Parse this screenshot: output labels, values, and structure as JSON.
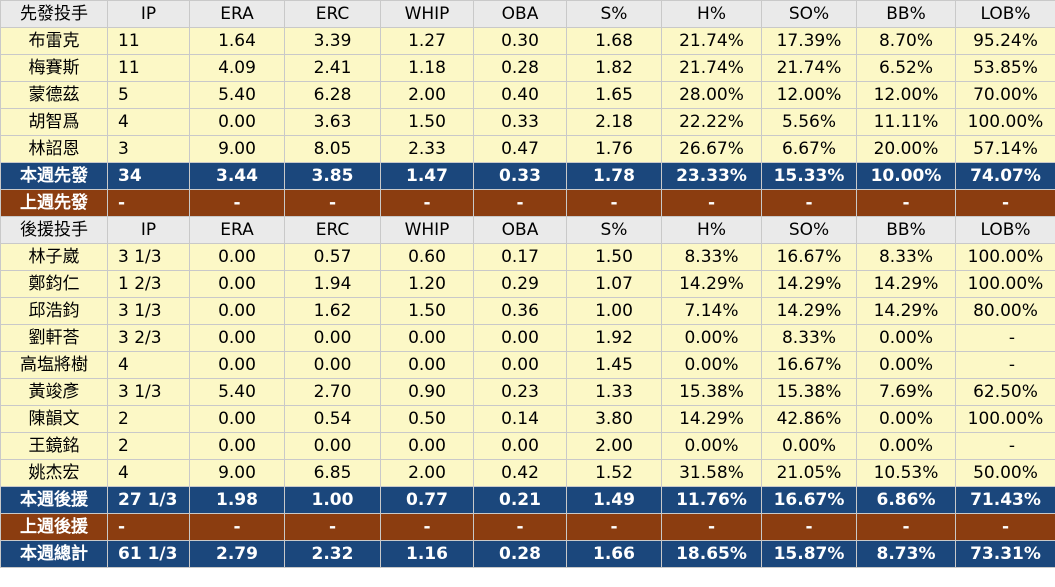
{
  "columns": [
    "IP",
    "ERA",
    "ERC",
    "WHIP",
    "OBA",
    "S%",
    "H%",
    "SO%",
    "BB%",
    "LOB%"
  ],
  "colors": {
    "header_bg": "#eaeaea",
    "row_bg": "#fcf8c6",
    "this_week_bg": "#1b477c",
    "last_week_bg": "#8b3d10"
  },
  "sections": [
    {
      "header_label": "先發投手",
      "rows": [
        {
          "name": "布雷克",
          "values": [
            "11",
            "1.64",
            "3.39",
            "1.27",
            "0.30",
            "1.68",
            "21.74%",
            "17.39%",
            "8.70%",
            "95.24%"
          ]
        },
        {
          "name": "梅賽斯",
          "values": [
            "11",
            "4.09",
            "2.41",
            "1.18",
            "0.28",
            "1.82",
            "21.74%",
            "21.74%",
            "6.52%",
            "53.85%"
          ]
        },
        {
          "name": "蒙德茲",
          "values": [
            "5",
            "5.40",
            "6.28",
            "2.00",
            "0.40",
            "1.65",
            "28.00%",
            "12.00%",
            "12.00%",
            "70.00%"
          ]
        },
        {
          "name": "胡智爲",
          "values": [
            "4",
            "0.00",
            "3.63",
            "1.50",
            "0.33",
            "2.18",
            "22.22%",
            "5.56%",
            "11.11%",
            "100.00%"
          ]
        },
        {
          "name": "林詔恩",
          "values": [
            "3",
            "9.00",
            "8.05",
            "2.33",
            "0.47",
            "1.76",
            "26.67%",
            "6.67%",
            "20.00%",
            "57.14%"
          ]
        }
      ],
      "total": {
        "name": "本週先發",
        "values": [
          "34",
          "3.44",
          "3.85",
          "1.47",
          "0.33",
          "1.78",
          "23.33%",
          "15.33%",
          "10.00%",
          "74.07%"
        ]
      },
      "previous": {
        "name": "上週先發",
        "values": [
          "-",
          "-",
          "-",
          "-",
          "-",
          "-",
          "-",
          "-",
          "-",
          "-"
        ]
      }
    },
    {
      "header_label": "後援投手",
      "rows": [
        {
          "name": "林子崴",
          "values": [
            "3 1/3",
            "0.00",
            "0.57",
            "0.60",
            "0.17",
            "1.50",
            "8.33%",
            "16.67%",
            "8.33%",
            "100.00%"
          ]
        },
        {
          "name": "鄭鈞仁",
          "values": [
            "1 2/3",
            "0.00",
            "1.94",
            "1.20",
            "0.29",
            "1.07",
            "14.29%",
            "14.29%",
            "14.29%",
            "100.00%"
          ]
        },
        {
          "name": "邱浩鈞",
          "values": [
            "3 1/3",
            "0.00",
            "1.62",
            "1.50",
            "0.36",
            "1.00",
            "7.14%",
            "14.29%",
            "14.29%",
            "80.00%"
          ]
        },
        {
          "name": "劉軒荅",
          "values": [
            "3 2/3",
            "0.00",
            "0.00",
            "0.00",
            "0.00",
            "1.92",
            "0.00%",
            "8.33%",
            "0.00%",
            "-"
          ]
        },
        {
          "name": "高塩將樹",
          "values": [
            "4",
            "0.00",
            "0.00",
            "0.00",
            "0.00",
            "1.45",
            "0.00%",
            "16.67%",
            "0.00%",
            "-"
          ]
        },
        {
          "name": "黃竣彥",
          "values": [
            "3 1/3",
            "5.40",
            "2.70",
            "0.90",
            "0.23",
            "1.33",
            "15.38%",
            "15.38%",
            "7.69%",
            "62.50%"
          ]
        },
        {
          "name": "陳韻文",
          "values": [
            "2",
            "0.00",
            "0.54",
            "0.50",
            "0.14",
            "3.80",
            "14.29%",
            "42.86%",
            "0.00%",
            "100.00%"
          ]
        },
        {
          "name": "王鏡銘",
          "values": [
            "2",
            "0.00",
            "0.00",
            "0.00",
            "0.00",
            "2.00",
            "0.00%",
            "0.00%",
            "0.00%",
            "-"
          ]
        },
        {
          "name": "姚杰宏",
          "values": [
            "4",
            "9.00",
            "6.85",
            "2.00",
            "0.42",
            "1.52",
            "31.58%",
            "21.05%",
            "10.53%",
            "50.00%"
          ]
        }
      ],
      "total": {
        "name": "本週後援",
        "values": [
          "27 1/3",
          "1.98",
          "1.00",
          "0.77",
          "0.21",
          "1.49",
          "11.76%",
          "16.67%",
          "6.86%",
          "71.43%"
        ]
      },
      "previous": {
        "name": "上週後援",
        "values": [
          "-",
          "-",
          "-",
          "-",
          "-",
          "-",
          "-",
          "-",
          "-",
          "-"
        ]
      }
    }
  ],
  "grand_total": {
    "name": "本週總計",
    "values": [
      "61 1/3",
      "2.79",
      "2.32",
      "1.16",
      "0.28",
      "1.66",
      "18.65%",
      "15.87%",
      "8.73%",
      "73.31%"
    ]
  }
}
